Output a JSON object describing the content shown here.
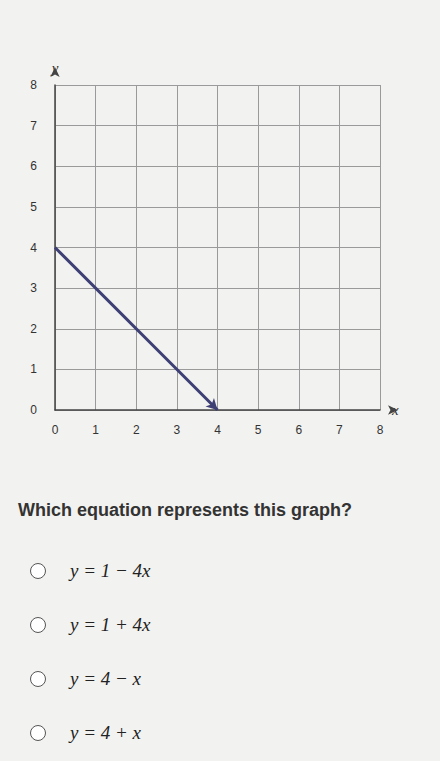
{
  "chart_data": {
    "type": "line",
    "x_label": "x",
    "y_label": "y",
    "x": [
      0,
      4
    ],
    "values": [
      4,
      0
    ],
    "color": "#3d3f75",
    "marker": "arrow",
    "line_style": "solid",
    "xlim": [
      0,
      8
    ],
    "ylim": [
      0,
      8
    ],
    "xticks": [
      0,
      1,
      2,
      3,
      4,
      5,
      6,
      7,
      8
    ],
    "yticks": [
      0,
      1,
      2,
      3,
      4,
      5,
      6,
      7,
      8
    ],
    "grid": true
  },
  "question": {
    "text": "Which equation represents this graph?",
    "options": [
      "y = 1 − 4x",
      "y = 1 + 4x",
      "y = 4 − x",
      "y = 4 + x"
    ]
  }
}
